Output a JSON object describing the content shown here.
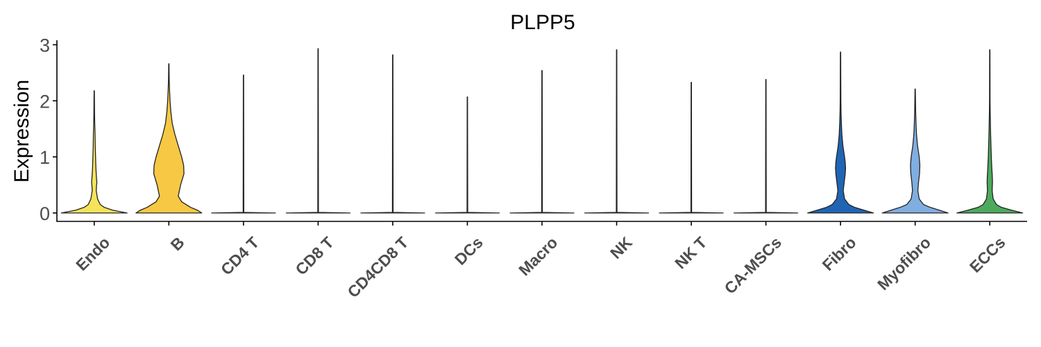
{
  "chart_data": {
    "type": "violin",
    "title": "PLPP5",
    "ylabel": "Expression",
    "xlabel": "",
    "ylim": [
      -0.15,
      3.08
    ],
    "yticks": [
      0,
      1,
      2,
      3
    ],
    "grid": false,
    "legend": "none",
    "categories": [
      "Endo",
      "B",
      "CD4 T",
      "CD8 T",
      "CD4CD8 T",
      "DCs",
      "Macro",
      "NK",
      "NK T",
      "CA-MSCs",
      "Fibro",
      "Myofibro",
      "ECCs"
    ],
    "series": [
      {
        "category": "Endo",
        "color": "#F5E35A",
        "max": 2.18,
        "profile": [
          [
            0,
            0.98
          ],
          [
            0.05,
            0.55
          ],
          [
            0.1,
            0.3
          ],
          [
            0.15,
            0.18
          ],
          [
            0.25,
            0.1
          ],
          [
            0.4,
            0.06
          ],
          [
            0.5,
            0.07
          ],
          [
            0.55,
            0.08
          ],
          [
            0.6,
            0.07
          ],
          [
            0.8,
            0.05
          ],
          [
            1.0,
            0.04
          ],
          [
            1.2,
            0.03
          ],
          [
            1.4,
            0.025
          ],
          [
            1.6,
            0.015
          ],
          [
            1.8,
            0.01
          ],
          [
            2.18,
            0.005
          ]
        ]
      },
      {
        "category": "B",
        "color": "#F7C843",
        "max": 2.66,
        "profile": [
          [
            0,
            0.98
          ],
          [
            0.05,
            0.85
          ],
          [
            0.1,
            0.65
          ],
          [
            0.2,
            0.38
          ],
          [
            0.3,
            0.28
          ],
          [
            0.5,
            0.35
          ],
          [
            0.7,
            0.45
          ],
          [
            0.85,
            0.44
          ],
          [
            1.0,
            0.38
          ],
          [
            1.2,
            0.28
          ],
          [
            1.4,
            0.18
          ],
          [
            1.6,
            0.1
          ],
          [
            1.8,
            0.06
          ],
          [
            2.0,
            0.035
          ],
          [
            2.2,
            0.02
          ],
          [
            2.4,
            0.01
          ],
          [
            2.66,
            0.005
          ]
        ]
      },
      {
        "category": "CD4 T",
        "color": "#F7C843",
        "max": 2.46,
        "profile": [
          [
            0,
            0.95
          ],
          [
            0.01,
            0.01
          ],
          [
            2.46,
            0.005
          ]
        ]
      },
      {
        "category": "CD8 T",
        "color": "#F7C843",
        "max": 2.93,
        "profile": [
          [
            0,
            0.95
          ],
          [
            0.01,
            0.01
          ],
          [
            2.93,
            0.005
          ]
        ]
      },
      {
        "category": "CD4CD8 T",
        "color": "#F7C843",
        "max": 2.82,
        "profile": [
          [
            0,
            0.95
          ],
          [
            0.01,
            0.01
          ],
          [
            2.82,
            0.005
          ]
        ]
      },
      {
        "category": "DCs",
        "color": "#F7C843",
        "max": 2.07,
        "profile": [
          [
            0,
            0.95
          ],
          [
            0.01,
            0.01
          ],
          [
            2.07,
            0.005
          ]
        ]
      },
      {
        "category": "Macro",
        "color": "#F7C843",
        "max": 2.54,
        "profile": [
          [
            0,
            0.95
          ],
          [
            0.01,
            0.01
          ],
          [
            2.54,
            0.005
          ]
        ]
      },
      {
        "category": "NK",
        "color": "#F7C843",
        "max": 2.91,
        "profile": [
          [
            0,
            0.95
          ],
          [
            0.01,
            0.01
          ],
          [
            2.91,
            0.005
          ]
        ]
      },
      {
        "category": "NK T",
        "color": "#F7C843",
        "max": 2.33,
        "profile": [
          [
            0,
            0.95
          ],
          [
            0.01,
            0.01
          ],
          [
            2.33,
            0.005
          ]
        ]
      },
      {
        "category": "CA-MSCs",
        "color": "#F7C843",
        "max": 2.38,
        "profile": [
          [
            0,
            0.95
          ],
          [
            0.01,
            0.01
          ],
          [
            2.38,
            0.005
          ]
        ]
      },
      {
        "category": "Fibro",
        "color": "#1F65B4",
        "max": 2.87,
        "profile": [
          [
            0,
            0.98
          ],
          [
            0.05,
            0.7
          ],
          [
            0.1,
            0.42
          ],
          [
            0.15,
            0.25
          ],
          [
            0.25,
            0.12
          ],
          [
            0.4,
            0.08
          ],
          [
            0.55,
            0.11
          ],
          [
            0.7,
            0.14
          ],
          [
            0.8,
            0.15
          ],
          [
            0.9,
            0.14
          ],
          [
            1.0,
            0.12
          ],
          [
            1.2,
            0.07
          ],
          [
            1.4,
            0.04
          ],
          [
            1.6,
            0.025
          ],
          [
            1.8,
            0.015
          ],
          [
            2.0,
            0.01
          ],
          [
            2.87,
            0.005
          ]
        ]
      },
      {
        "category": "Myofibro",
        "color": "#80AEE0",
        "max": 2.21,
        "profile": [
          [
            0,
            0.98
          ],
          [
            0.05,
            0.72
          ],
          [
            0.1,
            0.45
          ],
          [
            0.15,
            0.25
          ],
          [
            0.25,
            0.12
          ],
          [
            0.4,
            0.08
          ],
          [
            0.55,
            0.1
          ],
          [
            0.7,
            0.13
          ],
          [
            0.85,
            0.14
          ],
          [
            1.0,
            0.12
          ],
          [
            1.2,
            0.07
          ],
          [
            1.4,
            0.04
          ],
          [
            1.6,
            0.025
          ],
          [
            1.8,
            0.015
          ],
          [
            2.0,
            0.01
          ],
          [
            2.21,
            0.005
          ]
        ]
      },
      {
        "category": "ECCs",
        "color": "#4DAA5C",
        "max": 2.91,
        "profile": [
          [
            0,
            0.98
          ],
          [
            0.05,
            0.65
          ],
          [
            0.1,
            0.35
          ],
          [
            0.15,
            0.2
          ],
          [
            0.25,
            0.1
          ],
          [
            0.4,
            0.07
          ],
          [
            0.55,
            0.08
          ],
          [
            0.65,
            0.075
          ],
          [
            0.8,
            0.06
          ],
          [
            1.0,
            0.045
          ],
          [
            1.2,
            0.035
          ],
          [
            1.4,
            0.025
          ],
          [
            1.6,
            0.018
          ],
          [
            1.8,
            0.012
          ],
          [
            2.0,
            0.008
          ],
          [
            2.91,
            0.005
          ]
        ]
      }
    ]
  }
}
